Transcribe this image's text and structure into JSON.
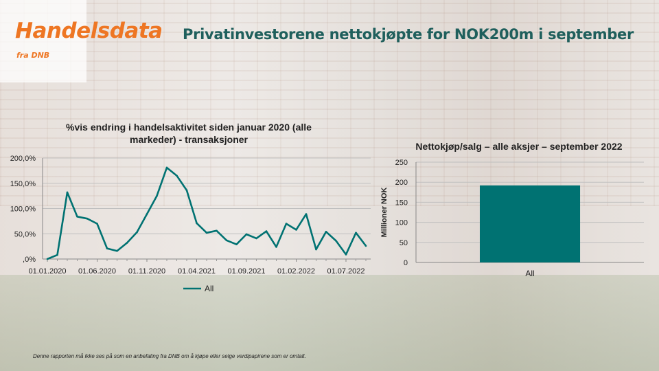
{
  "brand": {
    "name": "Handelsdata",
    "sub": "fra DNB",
    "color": "#ee7623"
  },
  "headline": "Privatinvestorene nettokjøpte for NOK200m i september",
  "footer": "Denne rapporten må ikke ses på som en anbefaling fra DNB om å kjøpe eller selge verdipapirene som er omtalt.",
  "chart_data": [
    {
      "type": "line",
      "title": "%vis endring i handelsaktivitet siden januar 2020 (alle markeder) - transaksjoner",
      "ylim": [
        0,
        200
      ],
      "yticks": [
        {
          "value": 0,
          "label": ",0%"
        },
        {
          "value": 50,
          "label": "50,0%"
        },
        {
          "value": 100,
          "label": "100,0%"
        },
        {
          "value": 150,
          "label": "150,0%"
        },
        {
          "value": 200,
          "label": "200,0%"
        }
      ],
      "xticks": [
        {
          "index": 0,
          "label": "01.01.2020"
        },
        {
          "index": 5,
          "label": "01.06.2020"
        },
        {
          "index": 10,
          "label": "01.11.2020"
        },
        {
          "index": 15,
          "label": "01.04.2021"
        },
        {
          "index": 20,
          "label": "01.09.2021"
        },
        {
          "index": 25,
          "label": "01.02.2022"
        },
        {
          "index": 30,
          "label": "01.07.2022"
        }
      ],
      "grid": true,
      "legend_position": "bottom",
      "color": "#007272",
      "series": [
        {
          "name": "All",
          "x": [
            "2020-01",
            "2020-02",
            "2020-03",
            "2020-04",
            "2020-05",
            "2020-06",
            "2020-07",
            "2020-08",
            "2020-09",
            "2020-10",
            "2020-11",
            "2020-12",
            "2021-01",
            "2021-02",
            "2021-03",
            "2021-04",
            "2021-05",
            "2021-06",
            "2021-07",
            "2021-08",
            "2021-09",
            "2021-10",
            "2021-11",
            "2021-12",
            "2022-01",
            "2022-02",
            "2022-03",
            "2022-04",
            "2022-05",
            "2022-06",
            "2022-07",
            "2022-08",
            "2022-09"
          ],
          "values": [
            0,
            8,
            132,
            84,
            80,
            70,
            21,
            16,
            32,
            53,
            89,
            125,
            181,
            165,
            136,
            71,
            52,
            56,
            37,
            29,
            49,
            41,
            55,
            24,
            70,
            58,
            89,
            19,
            54,
            36,
            9,
            52,
            26
          ]
        }
      ]
    },
    {
      "type": "bar",
      "title": "Nettokjøp/salg – alle aksjer – september 2022",
      "ylabel": "Millioner NOK",
      "ylim": [
        0,
        250
      ],
      "yticks": [
        0,
        50,
        100,
        150,
        200,
        250
      ],
      "categories": [
        "All"
      ],
      "values": [
        192
      ],
      "color": "#007272",
      "grid": true
    }
  ]
}
